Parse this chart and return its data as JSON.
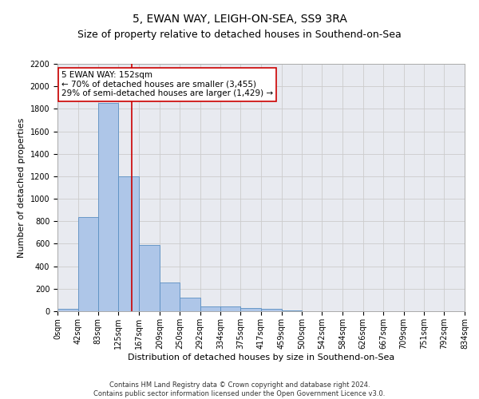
{
  "title": "5, EWAN WAY, LEIGH-ON-SEA, SS9 3RA",
  "subtitle": "Size of property relative to detached houses in Southend-on-Sea",
  "xlabel": "Distribution of detached houses by size in Southend-on-Sea",
  "ylabel": "Number of detached properties",
  "bin_edges": [
    0,
    42,
    83,
    125,
    167,
    209,
    250,
    292,
    334,
    375,
    417,
    459,
    500,
    542,
    584,
    626,
    667,
    709,
    751,
    792,
    834
  ],
  "bar_heights": [
    20,
    840,
    1850,
    1200,
    590,
    255,
    120,
    45,
    40,
    30,
    20,
    5,
    0,
    0,
    0,
    0,
    0,
    0,
    0,
    0
  ],
  "bar_color": "#aec6e8",
  "bar_edge_color": "#5a8fc2",
  "grid_color": "#cccccc",
  "bg_color": "#e8eaf0",
  "property_size": 152,
  "red_line_color": "#cc0000",
  "annotation_line1": "5 EWAN WAY: 152sqm",
  "annotation_line2": "← 70% of detached houses are smaller (3,455)",
  "annotation_line3": "29% of semi-detached houses are larger (1,429) →",
  "annotation_box_color": "#ffffff",
  "annotation_box_edge_color": "#cc0000",
  "ylim": [
    0,
    2200
  ],
  "yticks": [
    0,
    200,
    400,
    600,
    800,
    1000,
    1200,
    1400,
    1600,
    1800,
    2000,
    2200
  ],
  "footer_line1": "Contains HM Land Registry data © Crown copyright and database right 2024.",
  "footer_line2": "Contains public sector information licensed under the Open Government Licence v3.0.",
  "title_fontsize": 10,
  "subtitle_fontsize": 9,
  "tick_fontsize": 7,
  "ylabel_fontsize": 8,
  "xlabel_fontsize": 8,
  "annotation_fontsize": 7.5,
  "footer_fontsize": 6
}
